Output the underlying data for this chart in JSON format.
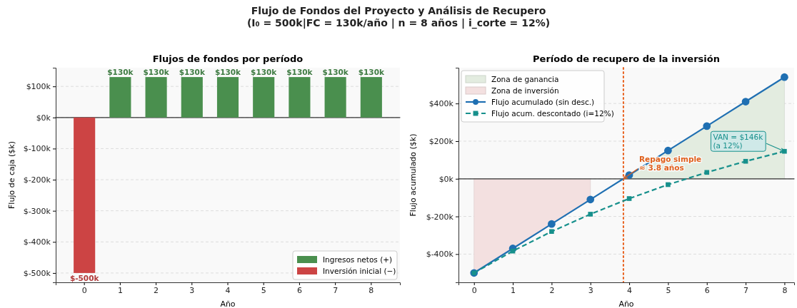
{
  "chart_data": [
    {
      "type": "bar",
      "title": "Flujos de fondos por período",
      "xlabel": "Año",
      "ylabel": "Flujo de caja ($k)",
      "annotations": [
        "Flujo de Fondos del Proyecto y Análisis de Recupero",
        "(I₀ = 500k|FC = 130k/año | n = 8 años | i_corte = 12%)"
      ],
      "categories": [
        "0",
        "1",
        "2",
        "3",
        "4",
        "5",
        "6",
        "7",
        "8"
      ],
      "series": [
        {
          "name": "Ingresos netos (+)",
          "color": "#4a8f4e",
          "values": [
            null,
            130,
            130,
            130,
            130,
            130,
            130,
            130,
            130
          ],
          "value_labels": [
            null,
            "$130k",
            "$130k",
            "$130k",
            "$130k",
            "$130k",
            "$130k",
            "$130k",
            "$130k"
          ]
        },
        {
          "name": "Inversión inicial (−)",
          "color": "#cc4444",
          "values": [
            -500,
            null,
            null,
            null,
            null,
            null,
            null,
            null,
            null
          ],
          "value_labels": [
            "$-500k",
            null,
            null,
            null,
            null,
            null,
            null,
            null,
            null
          ]
        }
      ],
      "ylim": [
        -530,
        160
      ],
      "yticks": [
        {
          "value": 100,
          "label": "$100k"
        },
        {
          "value": 0,
          "label": "$0k"
        },
        {
          "value": -100,
          "label": "$-100k"
        },
        {
          "value": -200,
          "label": "$-200k"
        },
        {
          "value": -300,
          "label": "$-300k"
        },
        {
          "value": -400,
          "label": "$-400k"
        },
        {
          "value": -500,
          "label": "$-500k"
        }
      ],
      "ref_lines": [
        {
          "axis": "y",
          "value": 0,
          "color": "#333333"
        }
      ],
      "grid": "y",
      "legend": "bottom right"
    },
    {
      "type": "line",
      "title": "Período de recupero de la inversión",
      "xlabel": "Año",
      "ylabel": "Flujo acumulado ($k)",
      "x": [
        0,
        1,
        2,
        3,
        4,
        5,
        6,
        7,
        8
      ],
      "series": [
        {
          "type": "area",
          "name": "Zona de ganancia",
          "color": "#e3ece0",
          "x": [
            4,
            5,
            6,
            7,
            8
          ],
          "values": [
            20,
            150,
            280,
            410,
            540
          ]
        },
        {
          "type": "area",
          "name": "Zona de inversión",
          "color": "#f3e0e0",
          "x": [
            0,
            1,
            2,
            3
          ],
          "values": [
            -500,
            -370,
            -240,
            -110
          ]
        },
        {
          "name": "Flujo acumulado (sin desc.)",
          "color": "#1f6fb2",
          "values": [
            -500,
            -370,
            -240,
            -110,
            20,
            150,
            280,
            410,
            540
          ],
          "marker": "circle",
          "line_style": "solid"
        },
        {
          "name": "Flujo acum. descontado (i=12%)",
          "color": "#17908c",
          "values": [
            -500,
            -384,
            -280,
            -188,
            -105,
            -31,
            34,
            93,
            146
          ],
          "marker": "square",
          "line_style": "dashed"
        }
      ],
      "xlim": [
        -0.4,
        8.25
      ],
      "xticks": [
        0,
        1,
        2,
        3,
        4,
        5,
        6,
        7,
        8
      ],
      "ylim": [
        -550,
        590
      ],
      "yticks": [
        {
          "value": -400,
          "label": "$-400k"
        },
        {
          "value": -200,
          "label": "$-200k"
        },
        {
          "value": 0,
          "label": "$0k"
        },
        {
          "value": 200,
          "label": "$200k"
        },
        {
          "value": 400,
          "label": "$400k"
        }
      ],
      "ref_lines": [
        {
          "axis": "y",
          "value": 0,
          "color": "#333333"
        },
        {
          "axis": "x",
          "value": 3.85,
          "color": "#e8601c",
          "line_style": "dotted"
        }
      ],
      "annotations": [
        {
          "text": "Repago simple\n≈ 3.8 años",
          "x": 3.85,
          "y": 0
        },
        {
          "text": "VAN = $146k\n(a 12%)",
          "x": 8,
          "y": 146
        }
      ],
      "grid": "y",
      "legend": "top left"
    }
  ]
}
